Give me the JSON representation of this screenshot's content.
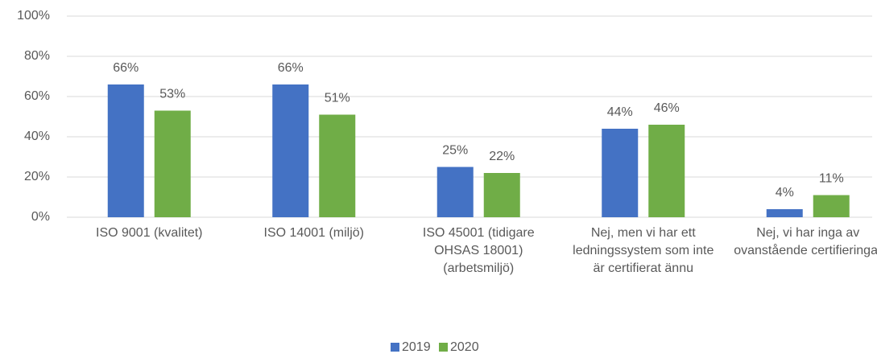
{
  "chart_data": {
    "type": "bar",
    "categories": [
      "ISO 9001 (kvalitet)",
      "ISO 14001 (miljö)",
      "ISO 45001 (tidigare OHSAS 18001) (arbetsmiljö)",
      "Nej, men vi har ett ledningssystem som inte är certifierat ännu",
      "Nej, vi har inga av ovanstående certifieringar"
    ],
    "series": [
      {
        "name": "2019",
        "color": "#4472c4",
        "values": [
          66,
          66,
          25,
          44,
          4
        ],
        "value_labels": [
          "66%",
          "66%",
          "25%",
          "44%",
          "4%"
        ]
      },
      {
        "name": "2020",
        "color": "#70ad47",
        "values": [
          53,
          51,
          22,
          46,
          11
        ],
        "value_labels": [
          "53%",
          "51%",
          "22%",
          "46%",
          "11%"
        ]
      }
    ],
    "ylim": [
      0,
      100
    ],
    "yticks": [
      {
        "value": 0,
        "label": "0%"
      },
      {
        "value": 20,
        "label": "20%"
      },
      {
        "value": 40,
        "label": "40%"
      },
      {
        "value": 60,
        "label": "60%"
      },
      {
        "value": 80,
        "label": "80%"
      },
      {
        "value": 100,
        "label": "100%"
      }
    ],
    "grid": true,
    "legend": "bottom"
  }
}
